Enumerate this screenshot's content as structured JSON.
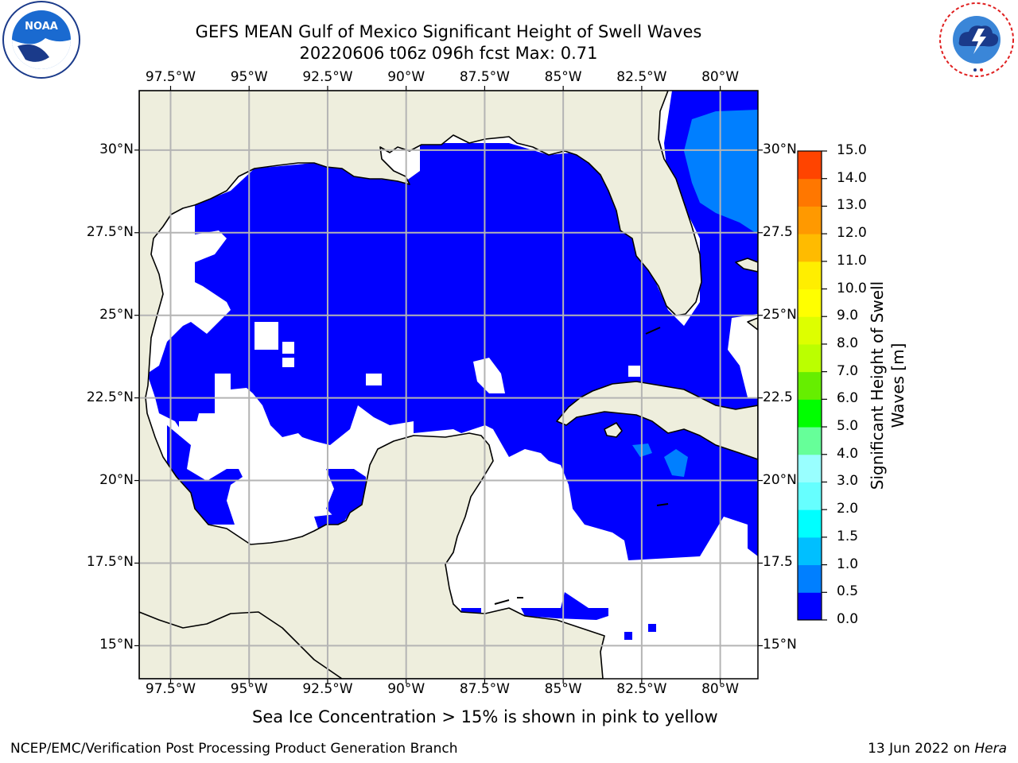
{
  "header": {
    "title_line1": "GEFS MEAN Gulf of Mexico Significant Height of Swell Waves",
    "title_line2": "20220606 t06z 096h fcst   Max: 0.71"
  },
  "logos": {
    "left": {
      "name": "noaa-logo",
      "text": "NOAA",
      "ring_text": "NATIONAL OCEANIC AND ATMOSPHERIC ADMINISTRATION · U.S. DEPARTMENT OF COMMERCE"
    },
    "right": {
      "name": "nws-logo",
      "ring_text": "NATIONAL WEATHER SERVICE"
    }
  },
  "map": {
    "projection": "lat-lon",
    "extent": {
      "lon_min": -98.5,
      "lon_max": -78.8,
      "lat_min": 14.0,
      "lat_max": 31.8
    },
    "lon_ticks": [
      {
        "value": -97.5,
        "label": "97.5°W"
      },
      {
        "value": -95,
        "label": "95°W"
      },
      {
        "value": -92.5,
        "label": "92.5°W"
      },
      {
        "value": -90,
        "label": "90°W"
      },
      {
        "value": -87.5,
        "label": "87.5°W"
      },
      {
        "value": -85,
        "label": "85°W"
      },
      {
        "value": -82.5,
        "label": "82.5°W"
      },
      {
        "value": -80,
        "label": "80°W"
      }
    ],
    "lat_ticks": [
      {
        "value": 30,
        "label": "30°N"
      },
      {
        "value": 27.5,
        "label": "27.5°N"
      },
      {
        "value": 25,
        "label": "25°N"
      },
      {
        "value": 22.5,
        "label": "22.5°N"
      },
      {
        "value": 20,
        "label": "20°N"
      },
      {
        "value": 17.5,
        "label": "17.5°N"
      },
      {
        "value": 15,
        "label": "15°N"
      }
    ],
    "right_lat_labels": [
      "30°N",
      "27.5",
      "25°N",
      "22.5",
      "20°N",
      "17.5",
      "15°N"
    ],
    "gridlines": true,
    "colors": {
      "land": "#eeeedd",
      "no_data": "#ffffff",
      "grid": "#b4b4b4",
      "coast": "#000000"
    }
  },
  "colorbar": {
    "title": "Significant Height of Swell Waves [m]",
    "levels": [
      {
        "label": "0.0",
        "color": "#0000ff"
      },
      {
        "label": "0.5",
        "color": "#007fff"
      },
      {
        "label": "1.0",
        "color": "#00bfff"
      },
      {
        "label": "1.5",
        "color": "#00ffff"
      },
      {
        "label": "2.0",
        "color": "#66ffff"
      },
      {
        "label": "3.0",
        "color": "#99ffff"
      },
      {
        "label": "4.0",
        "color": "#66ff99"
      },
      {
        "label": "5.0",
        "color": "#00ff00"
      },
      {
        "label": "6.0",
        "color": "#66ee00"
      },
      {
        "label": "7.0",
        "color": "#bbff00"
      },
      {
        "label": "8.0",
        "color": "#ddff00"
      },
      {
        "label": "9.0",
        "color": "#ffff00"
      },
      {
        "label": "10.0",
        "color": "#ffee00"
      },
      {
        "label": "11.0",
        "color": "#ffbb00"
      },
      {
        "label": "12.0",
        "color": "#ff9900"
      },
      {
        "label": "13.0",
        "color": "#ff7700"
      },
      {
        "label": "14.0",
        "color": "#ff4400"
      },
      {
        "label": "15.0",
        "color": "#ff0000"
      }
    ]
  },
  "note": "Sea Ice Concentration > 15% is shown in pink to yellow",
  "footer": {
    "left": "NCEP/EMC/Verification Post Processing Product Generation Branch",
    "right_prefix": "13 Jun 2022 on ",
    "right_host": "Hera"
  }
}
